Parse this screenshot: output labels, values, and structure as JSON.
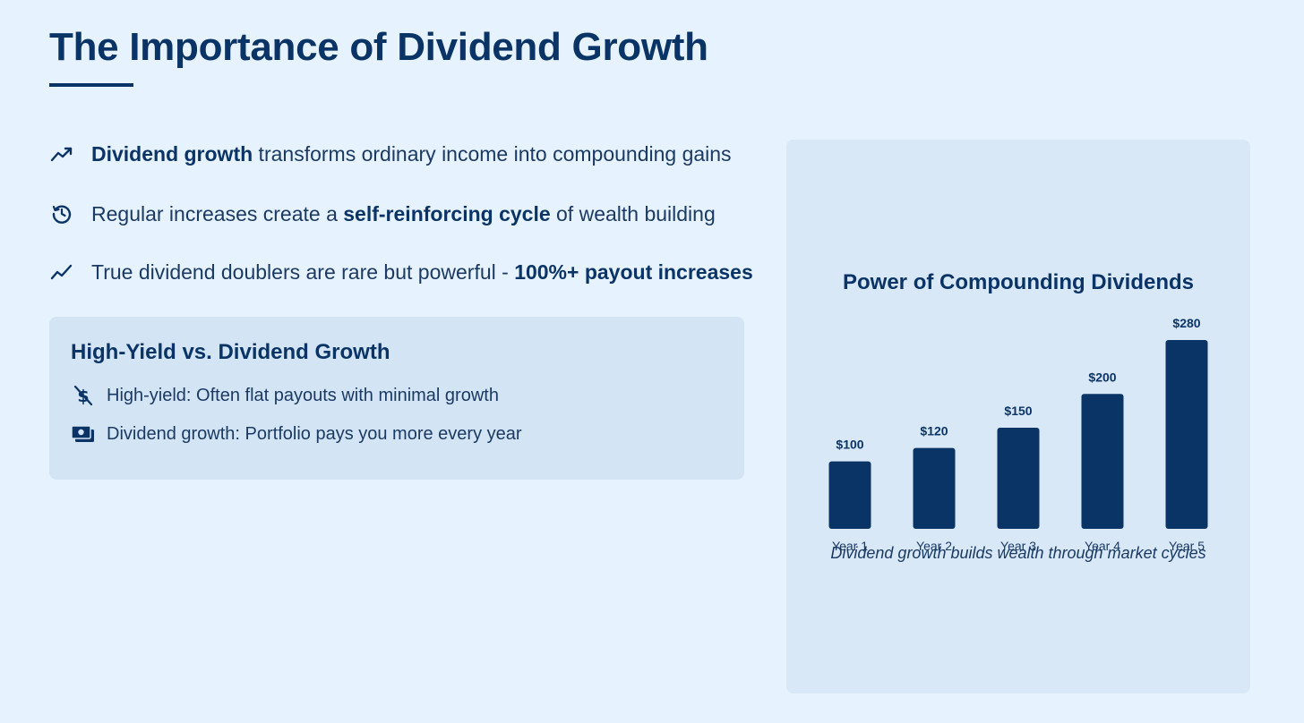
{
  "title": "The Importance of Dividend Growth",
  "bullets": [
    {
      "icon": "trending-up-icon",
      "before": "",
      "bold": "Dividend growth",
      "after": " transforms ordinary income into compounding gains"
    },
    {
      "icon": "clock-rotate-icon",
      "before": "Regular increases create a ",
      "bold": "self-reinforcing cycle",
      "after": " of wealth building"
    },
    {
      "icon": "chart-line-icon",
      "before": "True dividend doublers are rare but powerful - ",
      "bold": "100%+ payout increases",
      "after": ""
    }
  ],
  "compare": {
    "title": "High-Yield vs. Dividend Growth",
    "items": [
      {
        "icon": "dollar-crossed-icon",
        "text": "High-yield: Often flat payouts with minimal growth"
      },
      {
        "icon": "money-bill-icon",
        "text": "Dividend growth: Portfolio pays you more every year"
      }
    ]
  },
  "chart_data": {
    "type": "bar",
    "title": "Power of Compounding Dividends",
    "categories": [
      "Year 1",
      "Year 2",
      "Year 3",
      "Year 4",
      "Year 5"
    ],
    "values": [
      100,
      120,
      150,
      200,
      280
    ],
    "data_labels": [
      "$100",
      "$120",
      "$150",
      "$200",
      "$280"
    ],
    "ylim": [
      0,
      280
    ],
    "bar_color": "#0b3466",
    "caption": "Dividend growth builds wealth through market cycles"
  },
  "colors": {
    "background": "#e6f2fd",
    "accent": "#0b3466",
    "card": "#d3e4f4",
    "chart_card": "#d8e8f6"
  }
}
